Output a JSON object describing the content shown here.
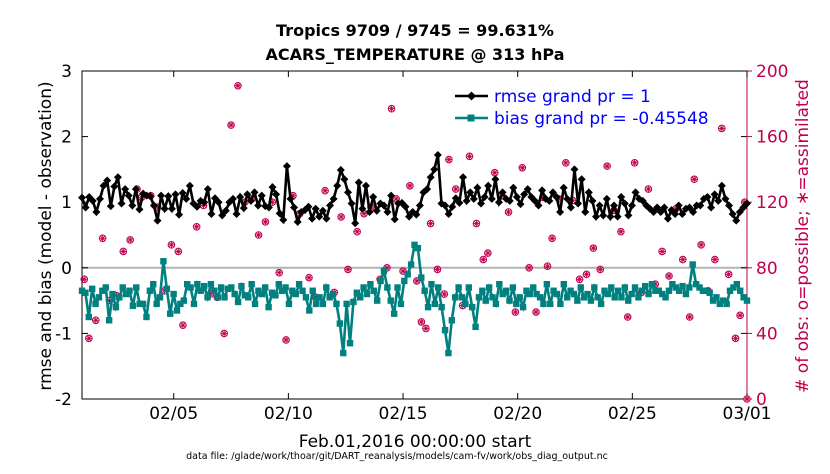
{
  "chart_data": {
    "type": "line",
    "title_line1": "Tropics 9709 / 9745 = 99.631%",
    "title_line2": "ACARS_TEMPERATURE @ 313 hPa",
    "ylabel_left": "rmse and bias (model - observation)",
    "ylabel_right": "# of obs: o=possible; ∗=assimilated",
    "xlabel": "Feb.01,2016 00:00:00 start",
    "footnote": "data file: /glade/work/thoar/git/DART_reanalysis/models/cam-fv/work/obs_diag_output.nc",
    "x_ticks": [
      "02/05",
      "02/10",
      "02/15",
      "02/20",
      "02/25",
      "03/01"
    ],
    "x_tick_days": [
      4,
      9,
      14,
      19,
      24,
      29
    ],
    "xlim": [
      0,
      29
    ],
    "ylim_left": [
      -2,
      3
    ],
    "yticks_left": [
      "3",
      "2",
      "1",
      "0",
      "-1",
      "-2"
    ],
    "ylim_right": [
      0,
      200
    ],
    "yticks_right": [
      "200",
      "160",
      "120",
      "80",
      "40",
      "0"
    ],
    "grid": false,
    "legend_position": "top-right",
    "colors": {
      "rmse": "#000000",
      "bias": "#00807f",
      "obs": "#c0004f",
      "zero_line": "#b3b3b3",
      "legend_text": "#0000ff"
    },
    "series": [
      {
        "name": "rmse grand pr = 1",
        "key": "rmse",
        "values": [
          1.07,
          0.92,
          1.08,
          1.02,
          0.85,
          1.05,
          1.25,
          1.33,
          0.94,
          1.24,
          1.38,
          0.98,
          1.2,
          1.1,
          0.95,
          1.2,
          0.89,
          1.13,
          1.1,
          1.09,
          0.95,
          0.72,
          1.1,
          0.9,
          1.09,
          0.9,
          1.12,
          0.81,
          1.14,
          1.05,
          1.25,
          0.98,
          0.93,
          1.02,
          1.0,
          1.2,
          0.82,
          1.06,
          1.0,
          0.8,
          0.87,
          1.0,
          1.05,
          0.82,
          1.08,
          0.91,
          1.12,
          1.02,
          1.15,
          0.95,
          1.1,
          0.94,
          0.92,
          1.23,
          1.12,
          0.83,
          0.73,
          1.55,
          1.05,
          0.92,
          0.7,
          0.85,
          0.88,
          0.93,
          0.75,
          0.9,
          0.78,
          0.87,
          0.75,
          0.95,
          1.05,
          1.25,
          1.49,
          1.35,
          1.15,
          0.98,
          0.68,
          1.3,
          0.9,
          1.25,
          0.85,
          1.08,
          0.87,
          0.98,
          0.95,
          0.85,
          1.1,
          0.74,
          0.98,
          0.99,
          0.93,
          0.78,
          0.85,
          0.81,
          0.95,
          1.15,
          1.2,
          1.38,
          1.5,
          1.72,
          0.98,
          0.95,
          0.82,
          0.93,
          1.06,
          0.99,
          1.38,
          1.02,
          1.15,
          1.05,
          1.22,
          0.98,
          1.08,
          1.25,
          1.05,
          1.35,
          1.0,
          1.15,
          1.05,
          1.02,
          1.22,
          1.08,
          0.97,
          1.12,
          1.2,
          1.08,
          1.02,
          0.95,
          1.18,
          1.05,
          1.02,
          1.15,
          1.08,
          0.85,
          1.22,
          1.05,
          0.92,
          1.5,
          0.98,
          1.35,
          0.85,
          1.15,
          1.02,
          0.78,
          0.95,
          0.8,
          1.05,
          0.78,
          0.95,
          0.78,
          1.08,
          0.98,
          0.8,
          0.95,
          1.15,
          1.05,
          1.02,
          0.95,
          0.9,
          0.85,
          0.92,
          0.85,
          0.92,
          0.75,
          0.88,
          0.82,
          0.95,
          0.82,
          0.9,
          0.92,
          0.85,
          0.95,
          0.95,
          1.05,
          1.08,
          0.92,
          1.12,
          1.02,
          1.25,
          1.05,
          0.95,
          0.82,
          0.72,
          0.85,
          0.92,
          0.98
        ]
      },
      {
        "name": "bias grand pr = -0.45548",
        "key": "bias",
        "values": [
          -0.35,
          -0.38,
          -0.75,
          -0.32,
          -0.55,
          -0.45,
          -0.35,
          -0.3,
          -0.8,
          -0.4,
          -0.6,
          -0.45,
          -0.3,
          -0.4,
          -0.35,
          -0.58,
          -0.3,
          -0.55,
          -0.55,
          -0.75,
          -0.35,
          -0.25,
          -0.55,
          -0.45,
          0.1,
          -0.32,
          -0.7,
          -0.4,
          -0.65,
          -0.55,
          -0.5,
          -0.25,
          -0.3,
          -0.55,
          -0.25,
          -0.35,
          -0.28,
          -0.45,
          -0.25,
          -0.35,
          -0.45,
          -0.3,
          -0.45,
          -0.32,
          -0.3,
          -0.4,
          -0.52,
          -0.28,
          -0.42,
          -0.45,
          -0.25,
          -0.55,
          -0.35,
          -0.4,
          -0.3,
          -0.6,
          -0.38,
          -0.42,
          -0.25,
          -0.35,
          -0.3,
          -0.55,
          -0.35,
          -0.4,
          -0.25,
          -0.35,
          -0.45,
          -0.65,
          -0.35,
          -0.55,
          -0.45,
          -0.55,
          -0.3,
          -0.45,
          -0.4,
          -0.55,
          -0.85,
          -1.3,
          -0.55,
          -1.15,
          -0.52,
          -0.38,
          -0.45,
          -0.3,
          -0.4,
          -0.25,
          -0.35,
          -0.5,
          -0.2,
          -0.05,
          -0.3,
          -0.5,
          -0.7,
          -0.3,
          -0.55,
          -0.2,
          -0.1,
          0.05,
          0.35,
          0.3,
          -0.15,
          -0.35,
          -0.6,
          -0.25,
          -0.55,
          -0.3,
          -0.6,
          -0.95,
          -1.3,
          -0.8,
          -0.45,
          -0.3,
          -0.45,
          -0.55,
          -0.3,
          -0.6,
          -0.9,
          -0.45,
          -0.35,
          -0.5,
          -0.3,
          -0.45,
          -0.55,
          -0.25,
          -0.4,
          -0.35,
          -0.5,
          -0.3,
          -0.55,
          -0.45,
          -0.6,
          -0.35,
          -0.4,
          -0.3,
          -0.4,
          -0.45,
          -0.55,
          -0.25,
          -0.55,
          -0.35,
          -0.4,
          -0.55,
          -0.25,
          -0.45,
          -0.35,
          -0.4,
          -0.5,
          -0.3,
          -0.45,
          -0.4,
          -0.5,
          -0.3,
          -0.45,
          -0.55,
          -0.35,
          -0.4,
          -0.3,
          -0.45,
          -0.35,
          -0.45,
          -0.3,
          -0.5,
          -0.4,
          -0.3,
          -0.45,
          -0.35,
          -0.28,
          -0.4,
          -0.25,
          -0.35,
          -0.35,
          -0.4,
          -0.45,
          -0.35,
          -0.25,
          -0.3,
          -0.35,
          -0.28,
          -0.4,
          -0.3,
          0.05,
          -0.25,
          -0.3,
          -0.35,
          -0.35,
          -0.38,
          -0.5,
          -0.45,
          -0.55,
          -0.5,
          -0.55,
          -0.35,
          -0.3,
          -0.25,
          -0.35,
          -0.45,
          -0.5
        ]
      }
    ],
    "obs_counts": {
      "name": "# of obs",
      "points": [
        [
          0.1,
          0.7,
          73
        ],
        [
          0.3,
          0.7,
          37
        ],
        [
          0.6,
          0.7,
          48
        ],
        [
          0.9,
          0.7,
          98
        ],
        [
          1.2,
          0.7,
          60
        ],
        [
          1.5,
          0.7,
          63
        ],
        [
          1.8,
          0.7,
          90
        ],
        [
          2.1,
          0.7,
          97
        ],
        [
          2.4,
          0.7,
          128
        ],
        [
          2.6,
          0.7,
          123
        ],
        [
          3.0,
          0.7,
          124
        ],
        [
          3.3,
          0.7,
          117
        ],
        [
          3.6,
          0.7,
          66
        ],
        [
          3.9,
          0.7,
          94
        ],
        [
          4.2,
          0.7,
          90
        ],
        [
          4.4,
          0.7,
          45
        ],
        [
          5.0,
          0.7,
          105
        ],
        [
          5.3,
          0.7,
          118
        ],
        [
          5.6,
          0.7,
          64
        ],
        [
          5.9,
          0.7,
          62
        ],
        [
          6.2,
          0.7,
          40
        ],
        [
          6.5,
          0.7,
          167
        ],
        [
          6.8,
          0.7,
          191
        ],
        [
          7.1,
          0.7,
          120
        ],
        [
          7.4,
          0.7,
          122
        ],
        [
          7.7,
          0.7,
          100
        ],
        [
          8.0,
          0.7,
          108
        ],
        [
          8.3,
          0.7,
          120
        ],
        [
          8.6,
          0.7,
          77
        ],
        [
          8.9,
          0.7,
          36
        ],
        [
          9.2,
          0.7,
          124
        ],
        [
          9.5,
          0.7,
          113
        ],
        [
          9.9,
          0.7,
          74
        ],
        [
          10.2,
          0.7,
          62
        ],
        [
          10.6,
          0.7,
          127
        ],
        [
          11.0,
          0.7,
          65
        ],
        [
          11.3,
          0.7,
          111
        ],
        [
          11.6,
          0.7,
          79
        ],
        [
          12.0,
          0.7,
          102
        ],
        [
          12.3,
          0.7,
          113
        ],
        [
          12.6,
          0.7,
          117
        ],
        [
          13.0,
          0.7,
          73
        ],
        [
          13.3,
          0.7,
          80
        ],
        [
          13.5,
          0.7,
          177
        ],
        [
          13.7,
          0.7,
          122
        ],
        [
          14.0,
          0.7,
          78
        ],
        [
          14.3,
          0.7,
          130
        ],
        [
          14.6,
          0.7,
          72
        ],
        [
          14.8,
          0.7,
          47
        ],
        [
          15.0,
          0.7,
          43
        ],
        [
          15.2,
          0.7,
          107
        ],
        [
          15.5,
          0.7,
          79
        ],
        [
          15.8,
          0.7,
          64
        ],
        [
          16.0,
          0.7,
          146
        ],
        [
          16.3,
          0.7,
          128
        ],
        [
          16.6,
          0.7,
          57
        ],
        [
          16.9,
          0.7,
          148
        ],
        [
          17.2,
          0.7,
          107
        ],
        [
          17.5,
          0.7,
          85
        ],
        [
          17.7,
          0.7,
          89
        ],
        [
          18.0,
          0.7,
          138
        ],
        [
          18.3,
          0.7,
          124
        ],
        [
          18.6,
          0.7,
          114
        ],
        [
          18.9,
          0.7,
          53
        ],
        [
          19.2,
          0.7,
          141
        ],
        [
          19.5,
          0.7,
          80
        ],
        [
          19.8,
          0.7,
          53
        ],
        [
          20.1,
          0.7,
          123
        ],
        [
          20.3,
          0.7,
          81
        ],
        [
          20.5,
          0.7,
          98
        ],
        [
          20.8,
          0.7,
          122
        ],
        [
          21.1,
          0.7,
          144
        ],
        [
          21.4,
          0.7,
          121
        ],
        [
          21.7,
          0.7,
          73
        ],
        [
          22.0,
          0.7,
          76
        ],
        [
          22.3,
          0.7,
          92
        ],
        [
          22.6,
          0.7,
          79
        ],
        [
          22.9,
          0.7,
          142
        ],
        [
          23.2,
          0.7,
          115
        ],
        [
          23.5,
          0.7,
          102
        ],
        [
          23.8,
          0.7,
          50
        ],
        [
          24.1,
          0.7,
          144
        ],
        [
          24.4,
          0.7,
          65
        ],
        [
          24.7,
          0.7,
          128
        ],
        [
          25.0,
          0.7,
          70
        ],
        [
          25.3,
          0.7,
          90
        ],
        [
          25.6,
          0.7,
          75
        ],
        [
          25.9,
          0.7,
          116
        ],
        [
          26.2,
          0.7,
          85
        ],
        [
          26.5,
          0.7,
          50
        ],
        [
          26.7,
          0.7,
          134
        ],
        [
          27.0,
          0.7,
          94
        ],
        [
          27.3,
          0.7,
          66
        ],
        [
          27.6,
          0.7,
          85
        ],
        [
          27.9,
          0.7,
          165
        ],
        [
          28.2,
          0.7,
          76
        ],
        [
          28.5,
          0.7,
          37
        ],
        [
          28.7,
          0.7,
          51
        ],
        [
          28.9,
          0.7,
          120
        ],
        [
          29.0,
          0.7,
          0
        ]
      ]
    }
  }
}
